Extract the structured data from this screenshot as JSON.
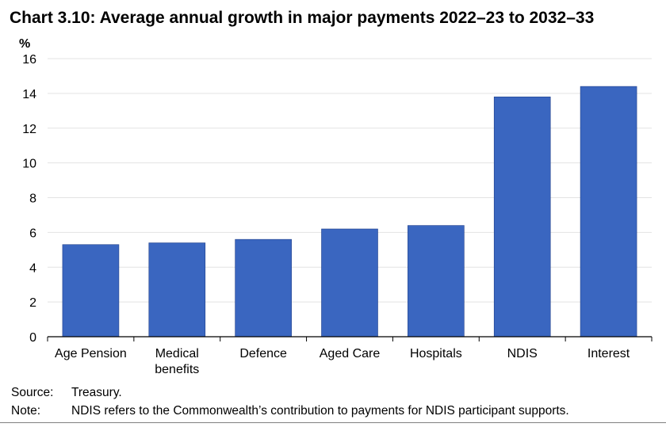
{
  "title": "Chart 3.10: Average annual growth in major payments 2022–23 to 2032–33",
  "chart_data": {
    "type": "bar",
    "title": "Chart 3.10: Average annual growth in major payments 2022–23 to 2032–33",
    "ylabel": "%",
    "xlabel": "",
    "ylim": [
      0,
      16
    ],
    "yticks": [
      "0",
      "2",
      "4",
      "6",
      "8",
      "10",
      "12",
      "14",
      "16"
    ],
    "categories": [
      [
        "Age Pension"
      ],
      [
        "Medical",
        "benefits"
      ],
      [
        "Defence"
      ],
      [
        "Aged Care"
      ],
      [
        "Hospitals"
      ],
      [
        "NDIS"
      ],
      [
        "Interest"
      ]
    ],
    "values": [
      5.3,
      5.4,
      5.6,
      6.2,
      6.4,
      13.8,
      14.4
    ],
    "bar_color": "#3A66C0",
    "grid": true
  },
  "notes": {
    "source_label": "Source:",
    "source_text": "Treasury.",
    "note_label": "Note:",
    "note_text": "NDIS refers to the Commonwealth’s contribution to payments for NDIS participant supports."
  }
}
